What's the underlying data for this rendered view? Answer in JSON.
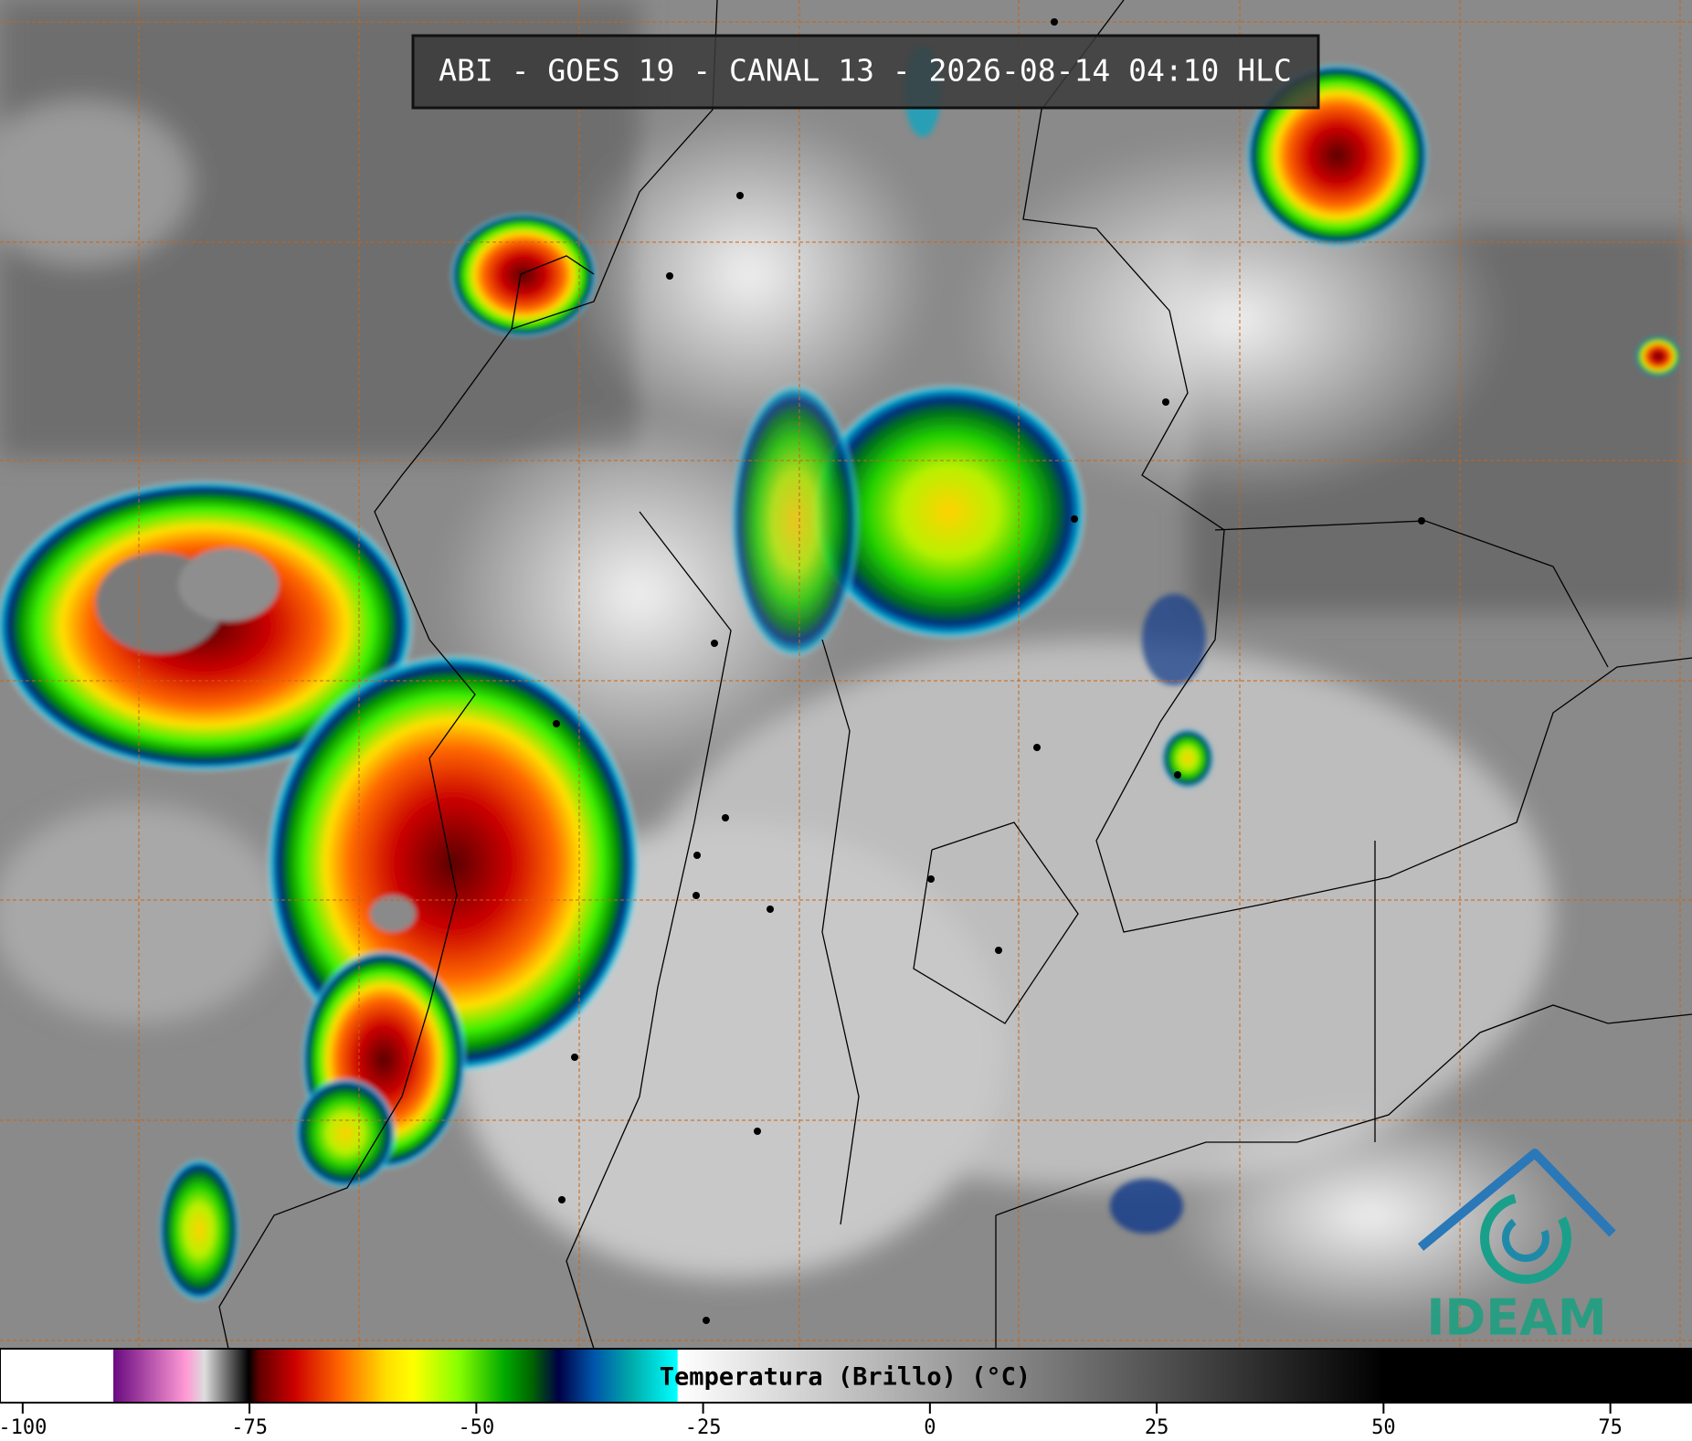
{
  "header": {
    "title": "ABI - GOES 19 - CANAL 13 - 2026-08-14 04:10 HLC"
  },
  "colorbar": {
    "label": "Temperatura (Brillo) (°C)",
    "range": [
      -102.5,
      84
    ],
    "ticks": [
      -100,
      -75,
      -50,
      -25,
      0,
      25,
      50,
      75
    ]
  },
  "logo": {
    "text": "IDEAM"
  }
}
